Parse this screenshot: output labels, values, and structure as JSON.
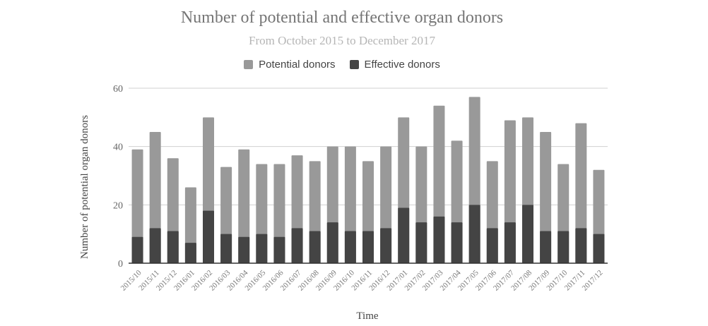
{
  "chart_data": {
    "type": "bar",
    "title": "Number of potential and effective organ donors",
    "subtitle": "From October 2015 to December 2017",
    "xlabel": "Time",
    "ylabel": "Number of potential organ donors",
    "ylim": [
      0,
      60
    ],
    "yticks": [
      "0",
      "20",
      "40",
      "60"
    ],
    "grid": true,
    "legend_position": "top",
    "categories": [
      "2015/10",
      "2015/11",
      "2015/12",
      "2016/01",
      "2016/02",
      "2016/03",
      "2016/04",
      "2016/05",
      "2016/06",
      "2016/07",
      "2016/08",
      "2016/09",
      "2016/10",
      "2016/11",
      "2016/12",
      "2017/01",
      "2017/02",
      "2017/03",
      "2017/04",
      "2017/05",
      "2017/06",
      "2017/07",
      "2017/08",
      "2017/09",
      "2017/10",
      "2017/11",
      "2017/12"
    ],
    "series": [
      {
        "name": "Potential donors",
        "color": "#999999",
        "values": [
          39,
          45,
          36,
          26,
          50,
          33,
          39,
          34,
          34,
          37,
          35,
          40,
          40,
          35,
          40,
          50,
          40,
          54,
          42,
          57,
          35,
          49,
          50,
          45,
          34,
          48,
          32
        ]
      },
      {
        "name": "Effective donors",
        "color": "#444444",
        "values": [
          9,
          12,
          11,
          7,
          18,
          10,
          9,
          10,
          9,
          12,
          11,
          14,
          11,
          11,
          12,
          19,
          14,
          16,
          14,
          20,
          12,
          14,
          20,
          11,
          11,
          12,
          10
        ]
      }
    ]
  }
}
